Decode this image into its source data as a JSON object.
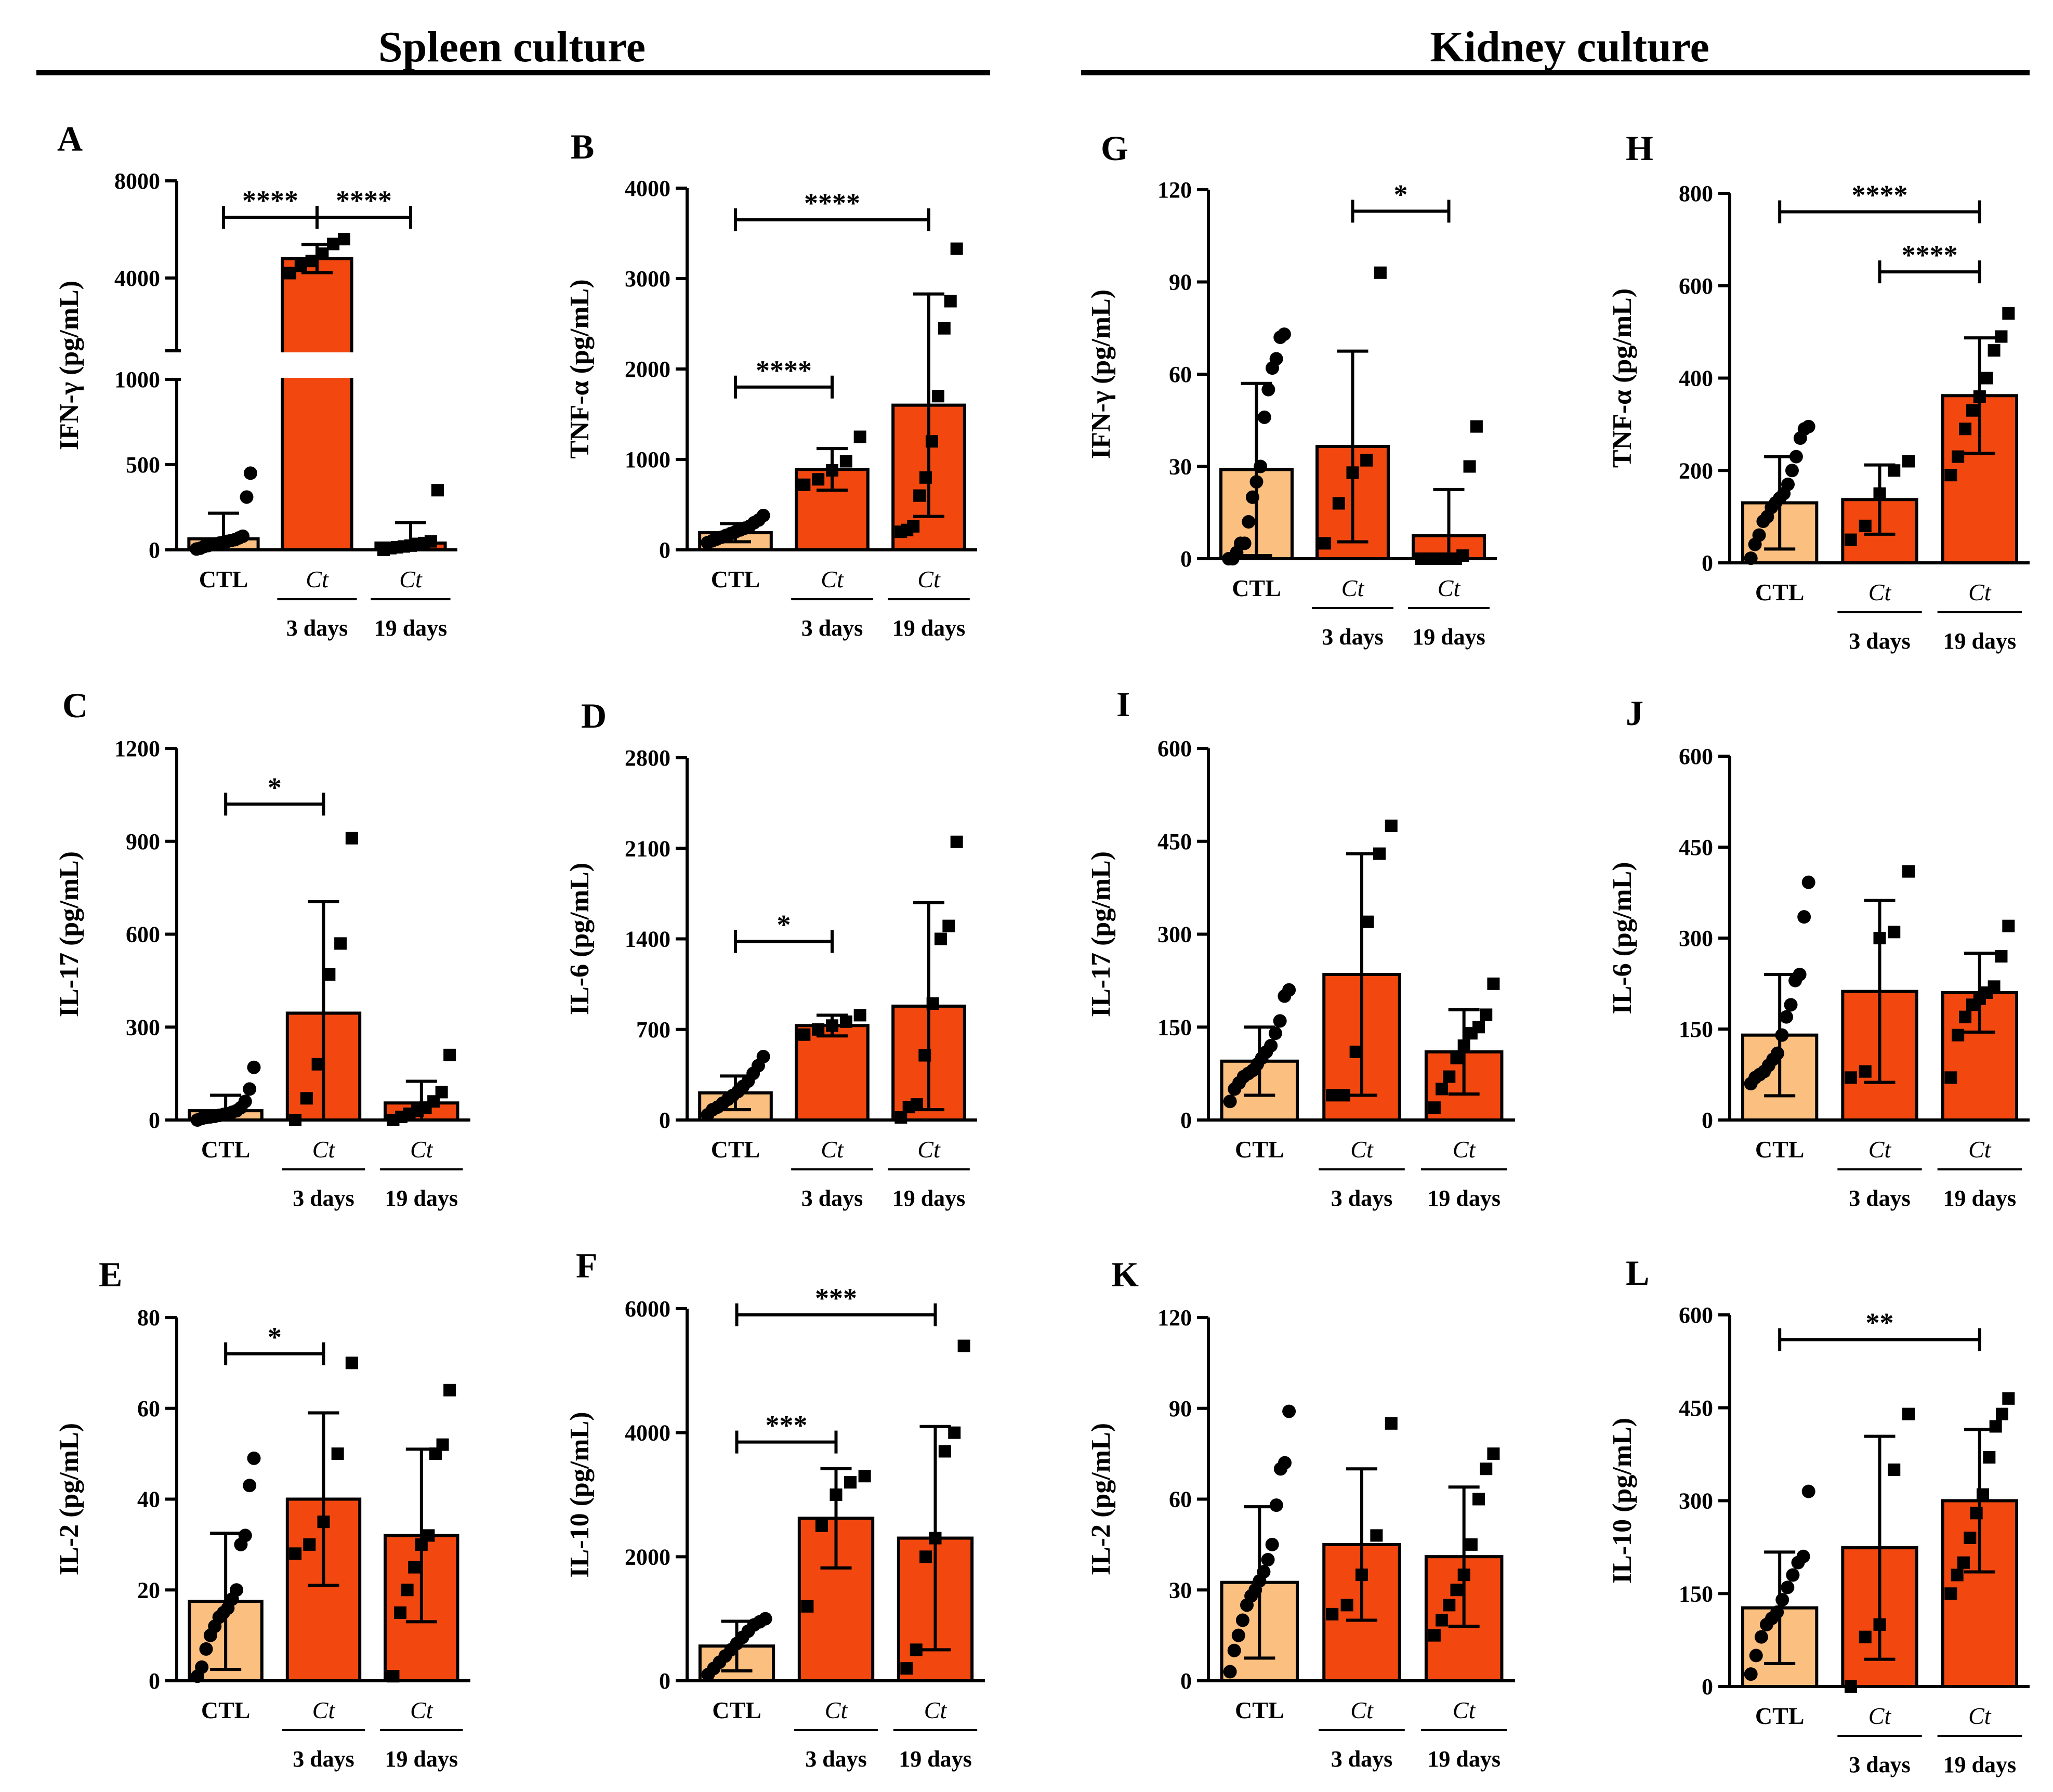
{
  "figure": {
    "sections": [
      {
        "title": "Spleen culture"
      },
      {
        "title": "Kidney culture"
      }
    ],
    "colors": {
      "ctl": "#FBBF80",
      "ct": "#F24810",
      "stroke": "#000000"
    }
  },
  "chart_data": [
    {
      "panel": "A",
      "type": "bar",
      "ylabel": "IFN-γ (pg/mL)",
      "ylim": [
        0,
        8000
      ],
      "yticks": [
        0,
        500,
        1000,
        4000,
        8000
      ],
      "axis_break": {
        "lower": [
          0,
          1000
        ],
        "upper": [
          1000,
          8000
        ],
        "upper_ticks": [
          4000,
          8000
        ]
      },
      "categories": [
        "CTL",
        "Ct",
        "Ct"
      ],
      "sublabels": [
        "",
        "3 days",
        "19 days"
      ],
      "values": [
        65,
        4800,
        40
      ],
      "sd": [
        150,
        580,
        120
      ],
      "points": [
        [
          5,
          10,
          20,
          25,
          30,
          35,
          40,
          45,
          50,
          55,
          60,
          70,
          80,
          310,
          450
        ],
        [
          4200,
          4500,
          4700,
          5000,
          5400,
          5600
        ],
        [
          0,
          10,
          15,
          20,
          25,
          35,
          40,
          50,
          350
        ]
      ],
      "annotations": [
        {
          "from": 0,
          "to": 1,
          "y": 6500,
          "text": "****"
        },
        {
          "from": 1,
          "to": 2,
          "y": 6500,
          "text": "****"
        }
      ]
    },
    {
      "panel": "B",
      "type": "bar",
      "ylabel": "TNF-α (pg/mL)",
      "ylim": [
        0,
        4000
      ],
      "yticks": [
        0,
        1000,
        2000,
        3000,
        4000
      ],
      "categories": [
        "CTL",
        "Ct",
        "Ct"
      ],
      "sublabels": [
        "",
        "3 days",
        "19 days"
      ],
      "values": [
        190,
        890,
        1600
      ],
      "sd": [
        100,
        230,
        1230
      ],
      "points": [
        [
          80,
          100,
          120,
          140,
          160,
          180,
          200,
          220,
          240,
          260,
          300,
          330,
          380
        ],
        [
          720,
          780,
          880,
          980,
          1250
        ],
        [
          200,
          220,
          260,
          600,
          800,
          1200,
          1700,
          2450,
          2750,
          3330
        ]
      ],
      "annotations": [
        {
          "from": 0,
          "to": 1,
          "y": 1800,
          "text": "****"
        },
        {
          "from": 0,
          "to": 2,
          "y": 3650,
          "text": "****"
        }
      ]
    },
    {
      "panel": "C",
      "type": "bar",
      "ylabel": "IL-17 (pg/mL)",
      "ylim": [
        0,
        1200
      ],
      "yticks": [
        0,
        300,
        600,
        900,
        1200
      ],
      "categories": [
        "CTL",
        "Ct",
        "Ct"
      ],
      "sublabels": [
        "",
        "3 days",
        "19 days"
      ],
      "values": [
        30,
        345,
        55
      ],
      "sd": [
        50,
        360,
        70
      ],
      "points": [
        [
          0,
          5,
          8,
          10,
          12,
          15,
          18,
          20,
          25,
          30,
          40,
          60,
          100,
          170
        ],
        [
          0,
          70,
          180,
          470,
          570,
          910
        ],
        [
          0,
          10,
          20,
          30,
          40,
          60,
          90,
          210
        ]
      ],
      "annotations": [
        {
          "from": 0,
          "to": 1,
          "y": 1020,
          "text": "*"
        }
      ]
    },
    {
      "panel": "D",
      "type": "bar",
      "ylabel": "IL-6 (pg/mL)",
      "ylim": [
        0,
        2800
      ],
      "yticks": [
        0,
        700,
        1400,
        2100,
        2800
      ],
      "categories": [
        "CTL",
        "Ct",
        "Ct"
      ],
      "sublabels": [
        "",
        "3 days",
        "19 days"
      ],
      "values": [
        210,
        730,
        880
      ],
      "sd": [
        130,
        80,
        800
      ],
      "points": [
        [
          40,
          80,
          100,
          130,
          160,
          190,
          220,
          260,
          300,
          360,
          420,
          490
        ],
        [
          660,
          700,
          730,
          760,
          810
        ],
        [
          20,
          100,
          120,
          500,
          900,
          1400,
          1500,
          2150
        ]
      ],
      "annotations": [
        {
          "from": 0,
          "to": 1,
          "y": 1380,
          "text": "*"
        }
      ]
    },
    {
      "panel": "E",
      "type": "bar",
      "ylabel": "IL-2 (pg/mL)",
      "ylim": [
        0,
        80
      ],
      "yticks": [
        0,
        20,
        40,
        60,
        80
      ],
      "categories": [
        "CTL",
        "Ct",
        "Ct"
      ],
      "sublabels": [
        "",
        "3 days",
        "19 days"
      ],
      "values": [
        17.5,
        40,
        32
      ],
      "sd": [
        15,
        19,
        19
      ],
      "points": [
        [
          1,
          3,
          7,
          10,
          12,
          14,
          15,
          16,
          18,
          20,
          30,
          32,
          43,
          49
        ],
        [
          28,
          30,
          35,
          50,
          70
        ],
        [
          1,
          15,
          20,
          25,
          30,
          32,
          50,
          52,
          64
        ]
      ],
      "annotations": [
        {
          "from": 0,
          "to": 1,
          "y": 72,
          "text": "*"
        }
      ]
    },
    {
      "panel": "F",
      "type": "bar",
      "ylabel": "IL-10 (pg/mL)",
      "ylim": [
        0,
        6000
      ],
      "yticks": [
        0,
        2000,
        4000,
        6000
      ],
      "categories": [
        "CTL",
        "Ct",
        "Ct"
      ],
      "sublabels": [
        "",
        "3 days",
        "19 days"
      ],
      "values": [
        560,
        2620,
        2300
      ],
      "sd": [
        400,
        800,
        1800
      ],
      "points": [
        [
          100,
          200,
          300,
          400,
          500,
          600,
          700,
          800,
          900,
          950,
          1000
        ],
        [
          1200,
          2500,
          3000,
          3200,
          3300
        ],
        [
          200,
          500,
          2000,
          2300,
          3700,
          4000,
          5400
        ]
      ],
      "annotations": [
        {
          "from": 0,
          "to": 1,
          "y": 3850,
          "text": "***"
        },
        {
          "from": 0,
          "to": 2,
          "y": 5900,
          "text": "***"
        }
      ]
    },
    {
      "panel": "G",
      "type": "bar",
      "ylabel": "IFN-γ (pg/mL)",
      "ylim": [
        0,
        120
      ],
      "yticks": [
        0,
        30,
        60,
        90,
        120
      ],
      "categories": [
        "CTL",
        "Ct",
        "Ct"
      ],
      "sublabels": [
        "",
        "3 days",
        "19 days"
      ],
      "values": [
        29,
        36.5,
        7.5
      ],
      "sd": [
        28,
        31,
        15
      ],
      "points": [
        [
          0,
          0,
          2,
          5,
          5,
          12,
          20,
          25,
          30,
          46,
          55,
          62,
          65,
          72,
          73
        ],
        [
          5,
          18,
          28,
          32,
          93
        ],
        [
          0,
          0,
          0,
          0,
          0,
          0,
          1,
          30,
          43
        ]
      ],
      "annotations": [
        {
          "from": 1,
          "to": 2,
          "y": 113,
          "text": "*"
        }
      ]
    },
    {
      "panel": "H",
      "type": "bar",
      "ylabel": "TNF-α (pg/mL)",
      "ylim": [
        0,
        800
      ],
      "yticks": [
        0,
        200,
        400,
        600,
        800
      ],
      "categories": [
        "CTL",
        "Ct",
        "Ct"
      ],
      "sublabels": [
        "",
        "3 days",
        "19 days"
      ],
      "values": [
        130,
        137,
        362
      ],
      "sd": [
        100,
        75,
        125
      ],
      "points": [
        [
          10,
          40,
          60,
          90,
          100,
          120,
          130,
          140,
          150,
          170,
          200,
          230,
          270,
          290,
          295
        ],
        [
          50,
          80,
          150,
          200,
          220
        ],
        [
          190,
          230,
          290,
          330,
          360,
          400,
          460,
          490,
          540
        ]
      ],
      "annotations": [
        {
          "from": 0,
          "to": 2,
          "y": 760,
          "text": "****"
        },
        {
          "from": 1,
          "to": 2,
          "y": 630,
          "text": "****"
        }
      ]
    },
    {
      "panel": "I",
      "type": "bar",
      "ylabel": "IL-17 (pg/mL)",
      "ylim": [
        0,
        600
      ],
      "yticks": [
        0,
        150,
        300,
        450,
        600
      ],
      "categories": [
        "CTL",
        "Ct",
        "Ct"
      ],
      "sublabels": [
        "",
        "3 days",
        "19 days"
      ],
      "values": [
        95,
        235,
        110
      ],
      "sd": [
        55,
        195,
        68
      ],
      "points": [
        [
          30,
          50,
          60,
          70,
          75,
          80,
          90,
          100,
          110,
          120,
          140,
          160,
          200,
          210
        ],
        [
          40,
          40,
          110,
          320,
          430,
          475
        ],
        [
          20,
          50,
          70,
          100,
          120,
          140,
          150,
          170,
          220
        ]
      ],
      "annotations": []
    },
    {
      "panel": "J",
      "type": "bar",
      "ylabel": "IL-6 (pg/mL)",
      "ylim": [
        0,
        600
      ],
      "yticks": [
        0,
        150,
        300,
        450,
        600
      ],
      "categories": [
        "CTL",
        "Ct",
        "Ct"
      ],
      "sublabels": [
        "",
        "3 days",
        "19 days"
      ],
      "values": [
        140,
        212,
        210
      ],
      "sd": [
        100,
        150,
        65
      ],
      "points": [
        [
          60,
          70,
          75,
          80,
          90,
          100,
          110,
          140,
          170,
          190,
          230,
          240,
          335,
          392
        ],
        [
          70,
          80,
          300,
          310,
          410
        ],
        [
          70,
          140,
          170,
          190,
          200,
          210,
          220,
          270,
          320
        ]
      ],
      "annotations": []
    },
    {
      "panel": "K",
      "type": "bar",
      "ylabel": "IL-2 (pg/mL)",
      "ylim": [
        0,
        120
      ],
      "yticks": [
        0,
        30,
        60,
        90,
        120
      ],
      "categories": [
        "CTL",
        "Ct",
        "Ct"
      ],
      "sublabels": [
        "",
        "3 days",
        "19 days"
      ],
      "values": [
        32.5,
        45,
        41
      ],
      "sd": [
        25,
        25,
        23
      ],
      "points": [
        [
          3,
          10,
          15,
          20,
          25,
          28,
          30,
          33,
          36,
          40,
          45,
          58,
          70,
          72,
          89
        ],
        [
          22,
          25,
          35,
          48,
          85
        ],
        [
          15,
          20,
          25,
          30,
          35,
          45,
          60,
          70,
          75
        ]
      ],
      "annotations": []
    },
    {
      "panel": "L",
      "type": "bar",
      "ylabel": "IL-10 (pg/mL)",
      "ylim": [
        0,
        600
      ],
      "yticks": [
        0,
        150,
        300,
        450,
        600
      ],
      "categories": [
        "CTL",
        "Ct",
        "Ct"
      ],
      "sublabels": [
        "",
        "3 days",
        "19 days"
      ],
      "values": [
        127,
        224,
        300
      ],
      "sd": [
        90,
        180,
        115
      ],
      "points": [
        [
          20,
          50,
          80,
          100,
          110,
          120,
          140,
          160,
          180,
          200,
          210,
          315
        ],
        [
          0,
          80,
          100,
          350,
          440
        ],
        [
          150,
          180,
          200,
          240,
          280,
          310,
          370,
          420,
          440,
          465
        ]
      ],
      "annotations": [
        {
          "from": 0,
          "to": 2,
          "y": 560,
          "text": "**"
        }
      ]
    }
  ]
}
